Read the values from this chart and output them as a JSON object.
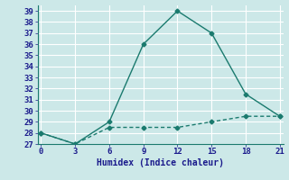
{
  "xlabel": "Humidex (Indice chaleur)",
  "bg_color": "#cce8e8",
  "grid_color": "#ffffff",
  "line_color": "#1a7a6e",
  "x_line1": [
    0,
    3,
    6,
    9,
    12,
    15,
    18,
    21
  ],
  "y_line1": [
    28,
    27,
    29,
    36,
    39,
    37,
    31.5,
    29.5
  ],
  "x_line2": [
    0,
    3,
    6,
    9,
    12,
    15,
    18,
    21
  ],
  "y_line2": [
    28,
    27,
    28.5,
    28.5,
    28.5,
    29,
    29.5,
    29.5
  ],
  "xlim": [
    -0.3,
    21.3
  ],
  "ylim": [
    27,
    39.5
  ],
  "xticks": [
    0,
    3,
    6,
    9,
    12,
    15,
    18,
    21
  ],
  "yticks": [
    27,
    28,
    29,
    30,
    31,
    32,
    33,
    34,
    35,
    36,
    37,
    38,
    39
  ],
  "marker": "D",
  "marker_size": 2.5,
  "line_width": 1.0,
  "tick_fontsize": 6.5,
  "xlabel_fontsize": 7.0
}
